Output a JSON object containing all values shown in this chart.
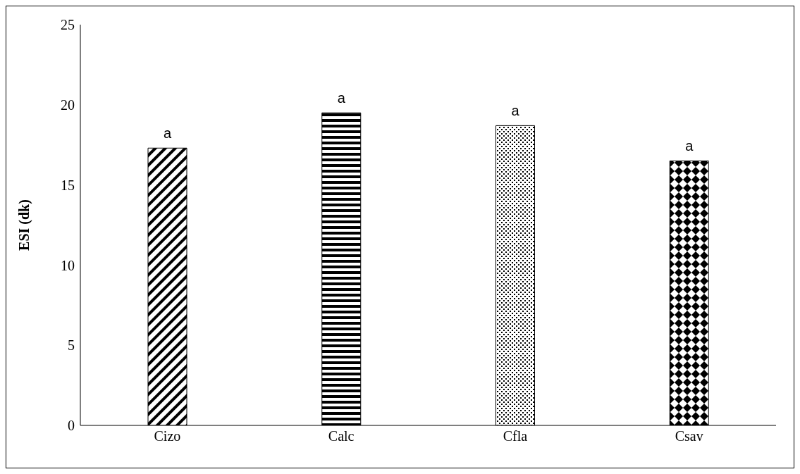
{
  "chart_data": {
    "type": "bar",
    "ylabel": "ESI (dk)",
    "categories": [
      "Cizo",
      "Calc",
      "Cfla",
      "Csav"
    ],
    "values": [
      17.3,
      19.5,
      18.7,
      16.5
    ],
    "color": "#000000",
    "ylim": [
      0,
      25
    ],
    "yticks": [
      0,
      5,
      10,
      15,
      20,
      25
    ],
    "grid": false,
    "legend": false,
    "annotations": [
      {
        "text": "a",
        "x": "Cizo",
        "y": 17.3
      },
      {
        "text": "a",
        "x": "Calc",
        "y": 19.5
      },
      {
        "text": "a",
        "x": "Cfla",
        "y": 18.7
      },
      {
        "text": "a",
        "x": "Csav",
        "y": 16.5
      }
    ]
  }
}
